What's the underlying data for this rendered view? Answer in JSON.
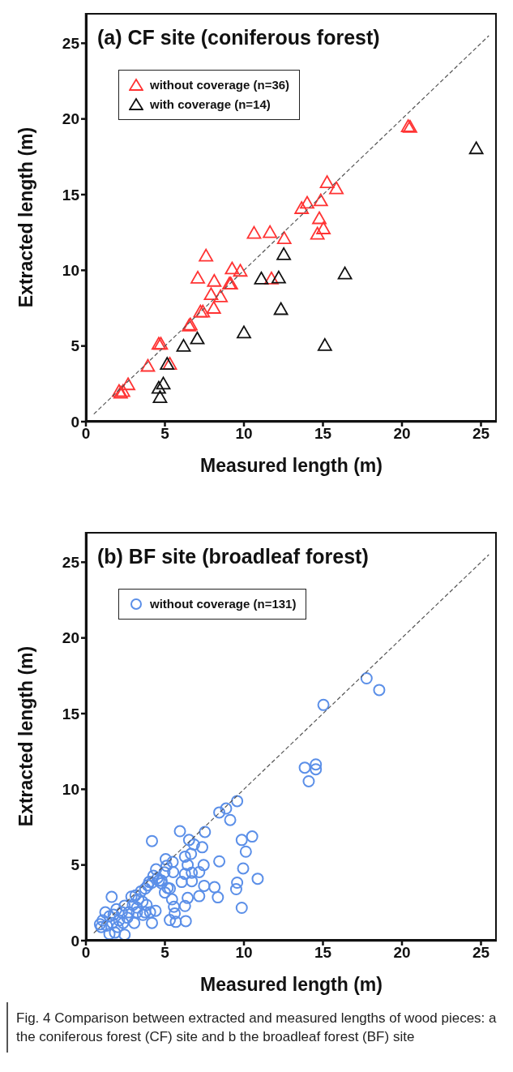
{
  "chart_data": [
    {
      "type": "scatter",
      "title": "(a) CF site (coniferous forest)",
      "xlabel": "Measured length (m)",
      "ylabel": "Extracted length (m)",
      "xlim": [
        0,
        26
      ],
      "ylim": [
        0,
        27
      ],
      "xticks": [
        0,
        5,
        10,
        15,
        20,
        25
      ],
      "yticks": [
        0,
        5,
        10,
        15,
        20,
        25
      ],
      "legend": "top left",
      "series": [
        {
          "name": "without coverage (n=36)",
          "color": "#ff3333",
          "marker": "triangle",
          "x": [
            2.1,
            2.2,
            2.35,
            2.67,
            3.92,
            4.61,
            4.74,
            5.31,
            6.53,
            6.61,
            7.25,
            7.4,
            8.09,
            7.08,
            7.6,
            7.92,
            8.12,
            8.52,
            9.08,
            9.17,
            9.25,
            9.77,
            10.64,
            11.65,
            11.74,
            12.55,
            13.65,
            14.0,
            14.86,
            14.77,
            15.03,
            14.65,
            15.26,
            15.85,
            20.39,
            20.51
          ],
          "values": [
            2.0,
            1.9,
            2.0,
            2.45,
            3.67,
            5.13,
            5.13,
            3.8,
            6.33,
            6.4,
            7.25,
            7.25,
            7.5,
            9.49,
            10.95,
            8.4,
            9.28,
            8.26,
            9.1,
            9.1,
            10.1,
            9.95,
            12.45,
            12.5,
            9.44,
            12.1,
            14.09,
            14.44,
            14.6,
            13.42,
            12.75,
            12.4,
            15.8,
            15.4,
            19.5,
            19.46
          ]
        },
        {
          "name": "with coverage (n=14)",
          "color": "#111111",
          "marker": "triangle",
          "x": [
            4.61,
            4.9,
            4.69,
            5.14,
            6.18,
            7.05,
            10.0,
            12.34,
            11.1,
            12.2,
            12.52,
            15.12,
            16.39,
            24.7
          ],
          "values": [
            2.22,
            2.5,
            1.6,
            3.8,
            4.99,
            5.48,
            5.87,
            7.42,
            9.44,
            9.5,
            11.04,
            5.04,
            9.77,
            18.04
          ]
        },
        {
          "type": "line",
          "color": "#555555",
          "line_style": "dashed",
          "marker": "none",
          "x": [
            0.5,
            25.5
          ],
          "values": [
            0.5,
            25.5
          ]
        }
      ]
    },
    {
      "type": "scatter",
      "title": "(b) BF site (broadleaf forest)",
      "xlabel": "Measured length (m)",
      "ylabel": "Extracted length (m)",
      "xlim": [
        0,
        26
      ],
      "ylim": [
        0,
        27
      ],
      "xticks": [
        0,
        5,
        10,
        15,
        20,
        25
      ],
      "yticks": [
        0,
        5,
        10,
        15,
        20,
        25
      ],
      "legend": "top left",
      "annotations": [
        "Fig. 4 Comparison between extracted and measured lengths of wood pieces: a the coniferous forest (CF) site and b the broadleaf forest (BF) site"
      ],
      "series": [
        {
          "name": "without coverage (n=131)",
          "color": "#5b8fe8",
          "marker": "circle",
          "x": [
            9.57,
            8.44,
            8.87,
            9.13,
            5.95,
            4.18,
            7.53,
            6.53,
            6.84,
            7.36,
            6.27,
            6.65,
            9.86,
            10.52,
            10.12,
            9.95,
            10.87,
            9.57,
            9.51,
            9.86,
            8.44,
            8.14,
            8.35,
            7.48,
            7.17,
            7.45,
            7.17,
            6.7,
            6.7,
            6.44,
            6.27,
            6.06,
            6.44,
            6.27,
            6.32,
            5.52,
            5.49,
            5.05,
            5.1,
            4.97,
            5.17,
            5.0,
            5.45,
            5.57,
            5.62,
            5.31,
            5.69,
            4.44,
            4.27,
            4.62,
            4.18,
            3.92,
            4.79,
            3.75,
            3.49,
            3.14,
            3.32,
            2.88,
            3.58,
            3.84,
            4.41,
            4.06,
            4.18,
            3.61,
            3.23,
            3.06,
            2.71,
            2.45,
            2.62,
            2.28,
            1.63,
            2.36,
            2.1,
            2.45,
            1.75,
            1.49,
            1.23,
            1.06,
            0.89,
            0.97,
            1.32,
            1.49,
            1.84,
            2.01,
            1.67,
            1.93,
            2.97,
            3.23,
            3.75,
            4.01,
            4.53,
            4.79,
            5.31,
            15.03,
            17.76,
            18.56,
            13.85,
            14.55,
            14.55,
            14.1
          ],
          "values": [
            9.22,
            8.47,
            8.73,
            7.97,
            7.23,
            6.58,
            7.18,
            6.65,
            6.35,
            6.17,
            5.55,
            5.73,
            6.65,
            6.88,
            5.88,
            4.77,
            4.09,
            3.83,
            3.4,
            2.17,
            5.24,
            3.53,
            2.86,
            3.62,
            2.94,
            4.99,
            4.53,
            4.49,
            3.93,
            5.0,
            4.41,
            3.88,
            2.82,
            2.29,
            1.29,
            4.53,
            5.2,
            5.38,
            4.94,
            4.51,
            3.48,
            3.18,
            2.73,
            2.24,
            1.8,
            1.36,
            1.24,
            4.71,
            4.28,
            3.96,
            3.83,
            3.65,
            3.79,
            3.44,
            3.26,
            2.99,
            2.73,
            2.91,
            2.57,
            2.36,
            1.97,
            1.88,
            1.17,
            1.7,
            1.87,
            1.17,
            1.87,
            2.31,
            1.52,
            1.87,
            2.89,
            1.17,
            1.34,
            0.39,
            1.71,
            1.61,
            1.87,
            1.34,
            1.08,
            0.9,
            0.99,
            0.44,
            0.53,
            0.9,
            1.17,
            2.07,
            2.36,
            2.18,
            1.87,
            3.88,
            4.14,
            3.96,
            3.44,
            15.57,
            17.33,
            16.56,
            11.43,
            11.64,
            11.32,
            10.53
          ]
        },
        {
          "type": "line",
          "color": "#555555",
          "line_style": "dashed",
          "marker": "none",
          "x": [
            0.5,
            25.5
          ],
          "values": [
            0.5,
            25.5
          ]
        }
      ]
    }
  ]
}
